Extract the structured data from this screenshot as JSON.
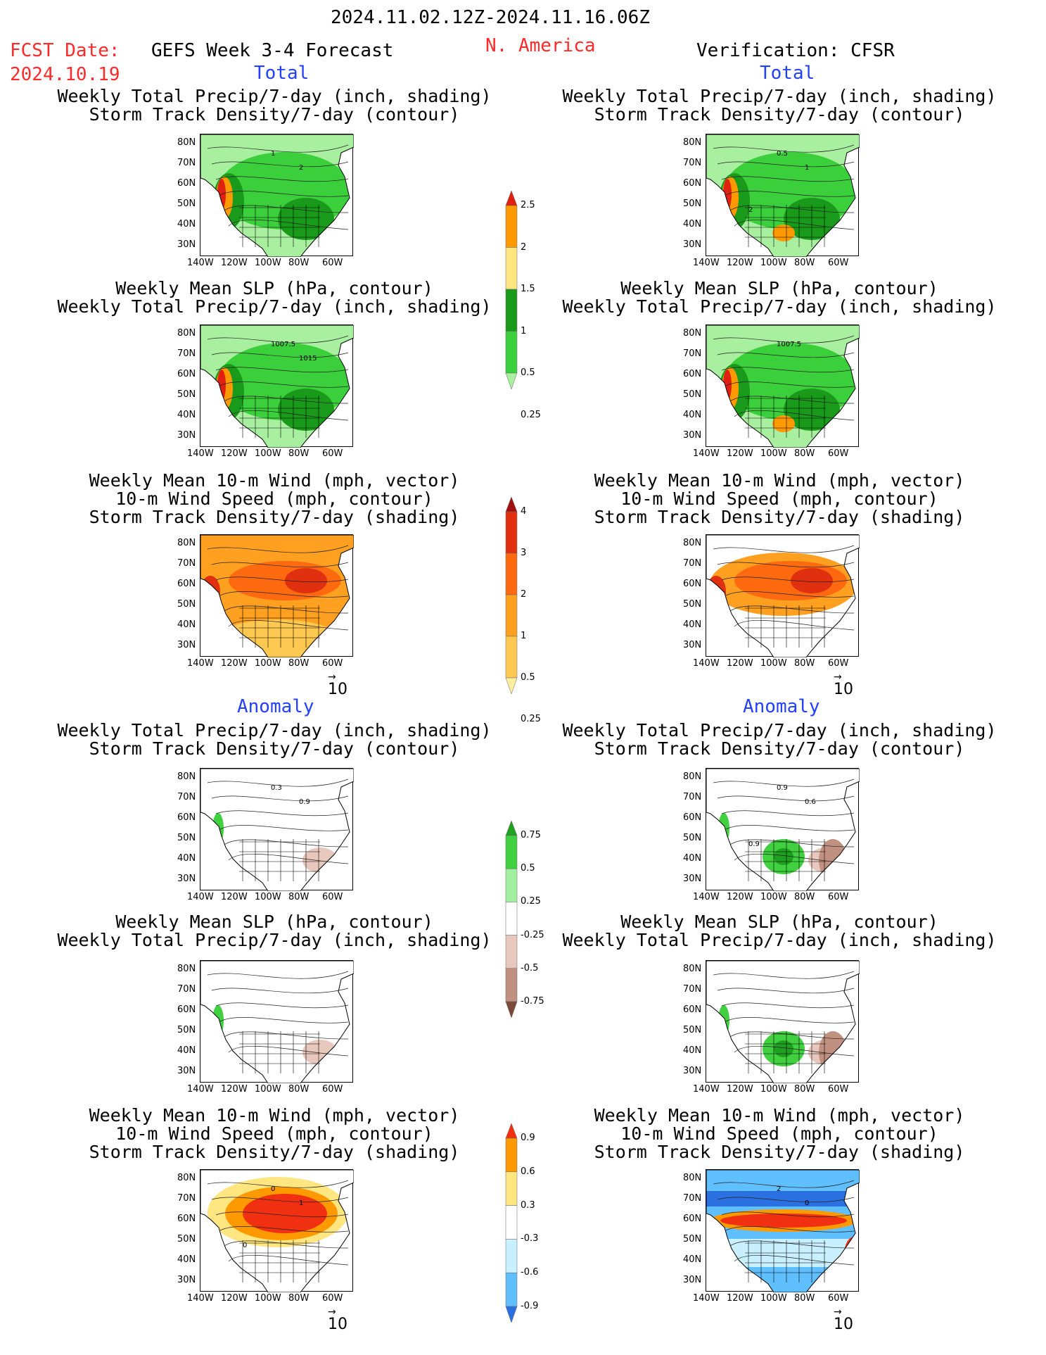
{
  "header": {
    "date_range": "2024.11.02.12Z-2024.11.16.06Z",
    "fcst_label": "FCST Date:",
    "fcst_date": "2024.10.19",
    "model": "GEFS Week 3-4 Forecast",
    "region": "N. America",
    "verification": "Verification: CFSR"
  },
  "sections": {
    "total_left": "Total",
    "total_right": "Total",
    "anom_left": "Anomaly",
    "anom_right": "Anomaly"
  },
  "titles": {
    "precip_storm": [
      "Weekly Total Precip/7-day (inch, shading)",
      "Storm Track Density/7-day (contour)"
    ],
    "slp_precip": [
      "Weekly Mean SLP (hPa, contour)",
      "Weekly Total Precip/7-day (inch, shading)"
    ],
    "wind_storm": [
      "Weekly Mean 10-m Wind (mph, vector)",
      "10-m Wind Speed (mph, contour)",
      "Storm Track Density/7-day (shading)"
    ]
  },
  "axes": {
    "lat": [
      "80N",
      "70N",
      "60N",
      "50N",
      "40N",
      "30N"
    ],
    "lon": [
      "140W",
      "120W",
      "100W",
      "80W",
      "60W"
    ]
  },
  "vector_ref": "10",
  "map_labels": {
    "p1L": [
      "1",
      "2"
    ],
    "p1R": [
      "0.5",
      "1",
      "2"
    ],
    "p2L": [
      "1007.5",
      "1015"
    ],
    "p2R": [
      "1007.5"
    ],
    "p4L": [
      "0.3",
      "0.9"
    ],
    "p4R": [
      "0.9",
      "0.6",
      "0.9"
    ],
    "p6L": [
      "0",
      "1",
      "0"
    ],
    "p6R": [
      "2",
      "0"
    ]
  },
  "colorbars": {
    "precip": {
      "labels": [
        "2.5",
        "2",
        "1.5",
        "1",
        "0.5",
        "0.25"
      ],
      "colors": [
        "#e02010",
        "#ff9900",
        "#ffe680",
        "#1a9a1a",
        "#3ccf3c",
        "#a8f0a0"
      ]
    },
    "storm": {
      "labels": [
        "4",
        "3",
        "2",
        "1",
        "0.5",
        "0.25"
      ],
      "colors": [
        "#a01010",
        "#e03010",
        "#ff6a10",
        "#ffa020",
        "#ffc850",
        "#fff0a0"
      ]
    },
    "precip_anom": {
      "labels": [
        "0.75",
        "0.5",
        "0.25",
        "-0.25",
        "-0.5",
        "-0.75"
      ],
      "colors": [
        "#20a020",
        "#40d040",
        "#a0f0a0",
        "#ffffff",
        "#e8c8bc",
        "#c09080",
        "#7a4a3a"
      ]
    },
    "storm_anom": {
      "labels": [
        "0.9",
        "0.6",
        "0.3",
        "-0.3",
        "-0.6",
        "-0.9"
      ],
      "colors": [
        "#f03010",
        "#ff9900",
        "#ffe680",
        "#ffffff",
        "#c8f0ff",
        "#60c0ff",
        "#2a70e0"
      ]
    }
  }
}
